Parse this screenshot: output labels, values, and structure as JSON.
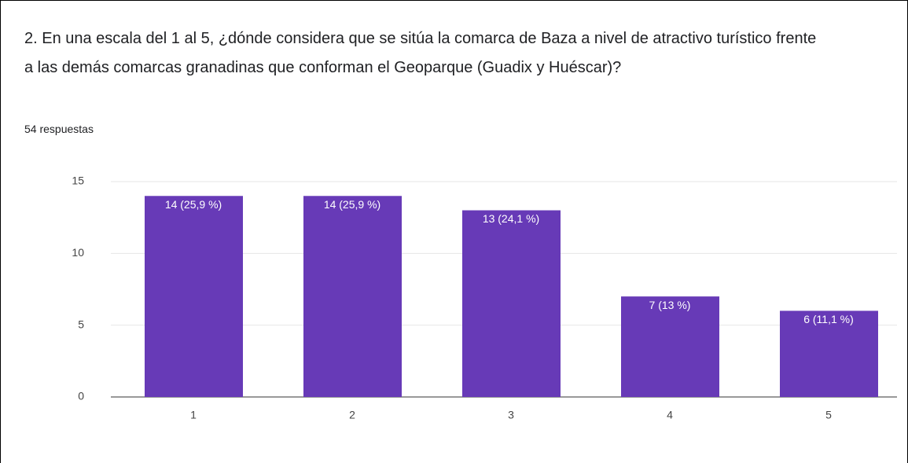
{
  "chart_data": {
    "type": "bar",
    "title": "2. En una escala del 1 al 5, ¿dónde considera que se sitúa la comarca de Baza a nivel de atractivo turístico frente a las demás comarcas granadinas que conforman el Geoparque (Guadix y Huéscar)?",
    "subtitle": "54 respuestas",
    "categories": [
      "1",
      "2",
      "3",
      "4",
      "5"
    ],
    "values": [
      14,
      14,
      13,
      7,
      6
    ],
    "value_labels": [
      "14 (25,9 %)",
      "14 (25,9 %)",
      "13 (24,1 %)",
      "7 (13 %)",
      "6 (11,1 %)"
    ],
    "color": "#673ab7",
    "ylim": [
      0,
      15
    ],
    "yticks": [
      0,
      5,
      10,
      15
    ],
    "grid": true
  }
}
